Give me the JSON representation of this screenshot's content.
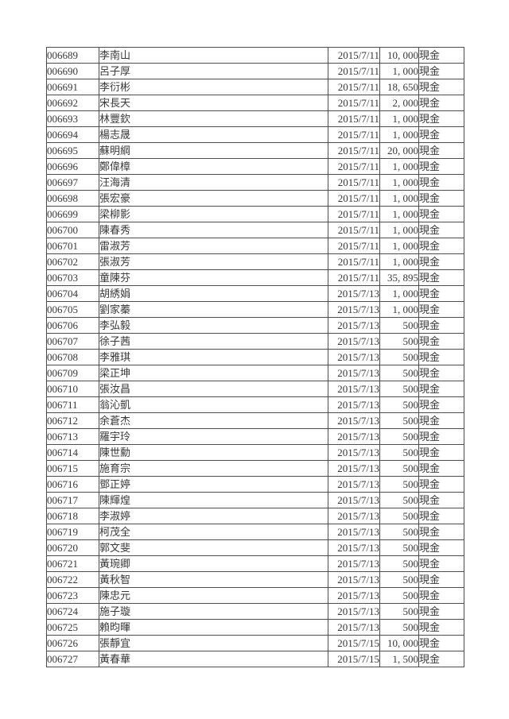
{
  "colors": {
    "background": "#ffffff",
    "text": "#383838",
    "border": "#4d4d4d"
  },
  "table": {
    "columns": [
      "id",
      "name",
      "date",
      "amount",
      "method"
    ],
    "rows": [
      {
        "id": "006689",
        "name": "李南山",
        "date": "2015/7/11",
        "amount": "10, 000",
        "method": "現金"
      },
      {
        "id": "006690",
        "name": "呂子厚",
        "date": "2015/7/11",
        "amount": "1, 000",
        "method": "現金"
      },
      {
        "id": "006691",
        "name": "李衍彬",
        "date": "2015/7/11",
        "amount": "18, 650",
        "method": "現金"
      },
      {
        "id": "006692",
        "name": "宋長天",
        "date": "2015/7/11",
        "amount": "2, 000",
        "method": "現金"
      },
      {
        "id": "006693",
        "name": "林豐欽",
        "date": "2015/7/11",
        "amount": "1, 000",
        "method": "現金"
      },
      {
        "id": "006694",
        "name": "楊志晟",
        "date": "2015/7/11",
        "amount": "1, 000",
        "method": "現金"
      },
      {
        "id": "006695",
        "name": "蘇明綱",
        "date": "2015/7/11",
        "amount": "20, 000",
        "method": "現金"
      },
      {
        "id": "006696",
        "name": "鄭偉樟",
        "date": "2015/7/11",
        "amount": "1, 000",
        "method": "現金"
      },
      {
        "id": "006697",
        "name": "汪海清",
        "date": "2015/7/11",
        "amount": "1, 000",
        "method": "現金"
      },
      {
        "id": "006698",
        "name": "張宏豪",
        "date": "2015/7/11",
        "amount": "1, 000",
        "method": "現金"
      },
      {
        "id": "006699",
        "name": "梁柳影",
        "date": "2015/7/11",
        "amount": "1, 000",
        "method": "現金"
      },
      {
        "id": "006700",
        "name": "陳春秀",
        "date": "2015/7/11",
        "amount": "1, 000",
        "method": "現金"
      },
      {
        "id": "006701",
        "name": "雷淑芳",
        "date": "2015/7/11",
        "amount": "1, 000",
        "method": "現金"
      },
      {
        "id": "006702",
        "name": "張淑芳",
        "date": "2015/7/11",
        "amount": "1, 000",
        "method": "現金"
      },
      {
        "id": "006703",
        "name": "童陳芬",
        "date": "2015/7/11",
        "amount": "35, 895",
        "method": "現金"
      },
      {
        "id": "006704",
        "name": "胡綉娟",
        "date": "2015/7/13",
        "amount": "1, 000",
        "method": "現金"
      },
      {
        "id": "006705",
        "name": "劉家蓁",
        "date": "2015/7/13",
        "amount": "1, 000",
        "method": "現金"
      },
      {
        "id": "006706",
        "name": "李弘毅",
        "date": "2015/7/13",
        "amount": "500",
        "method": "現金"
      },
      {
        "id": "006707",
        "name": "徐子茜",
        "date": "2015/7/13",
        "amount": "500",
        "method": "現金"
      },
      {
        "id": "006708",
        "name": "李雅琪",
        "date": "2015/7/13",
        "amount": "500",
        "method": "現金"
      },
      {
        "id": "006709",
        "name": "梁正坤",
        "date": "2015/7/13",
        "amount": "500",
        "method": "現金"
      },
      {
        "id": "006710",
        "name": "張汝昌",
        "date": "2015/7/13",
        "amount": "500",
        "method": "現金"
      },
      {
        "id": "006711",
        "name": "翁沁凱",
        "date": "2015/7/13",
        "amount": "500",
        "method": "現金"
      },
      {
        "id": "006712",
        "name": "余蒼杰",
        "date": "2015/7/13",
        "amount": "500",
        "method": "現金"
      },
      {
        "id": "006713",
        "name": "羅宇玲",
        "date": "2015/7/13",
        "amount": "500",
        "method": "現金"
      },
      {
        "id": "006714",
        "name": "陳世勳",
        "date": "2015/7/13",
        "amount": "500",
        "method": "現金"
      },
      {
        "id": "006715",
        "name": "施育宗",
        "date": "2015/7/13",
        "amount": "500",
        "method": "現金"
      },
      {
        "id": "006716",
        "name": "鄧正婷",
        "date": "2015/7/13",
        "amount": "500",
        "method": "現金"
      },
      {
        "id": "006717",
        "name": "陳輝煌",
        "date": "2015/7/13",
        "amount": "500",
        "method": "現金"
      },
      {
        "id": "006718",
        "name": "李淑婷",
        "date": "2015/7/13",
        "amount": "500",
        "method": "現金"
      },
      {
        "id": "006719",
        "name": "柯茂全",
        "date": "2015/7/13",
        "amount": "500",
        "method": "現金"
      },
      {
        "id": "006720",
        "name": "郭文斐",
        "date": "2015/7/13",
        "amount": "500",
        "method": "現金"
      },
      {
        "id": "006721",
        "name": "黃琬卿",
        "date": "2015/7/13",
        "amount": "500",
        "method": "現金"
      },
      {
        "id": "006722",
        "name": "黃秋智",
        "date": "2015/7/13",
        "amount": "500",
        "method": "現金"
      },
      {
        "id": "006723",
        "name": "陳忠元",
        "date": "2015/7/13",
        "amount": "500",
        "method": "現金"
      },
      {
        "id": "006724",
        "name": "施子璇",
        "date": "2015/7/13",
        "amount": "500",
        "method": "現金"
      },
      {
        "id": "006725",
        "name": "賴昀暉",
        "date": "2015/7/13",
        "amount": "500",
        "method": "現金"
      },
      {
        "id": "006726",
        "name": "張靜宜",
        "date": "2015/7/15",
        "amount": "10, 000",
        "method": "現金"
      },
      {
        "id": "006727",
        "name": "黃春華",
        "date": "2015/7/15",
        "amount": "1, 500",
        "method": "現金"
      }
    ]
  }
}
